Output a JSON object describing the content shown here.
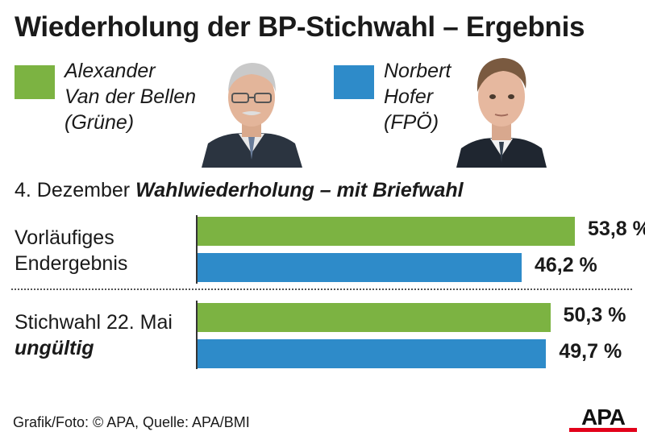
{
  "title": "Wiederholung der BP-Stichwahl – Ergebnis",
  "legend": [
    {
      "lines": [
        "Alexander",
        "Van der Bellen",
        "(Grüne)"
      ],
      "color": "#7cb342",
      "photo_icon": "portrait-van-der-bellen"
    },
    {
      "lines": [
        "Norbert",
        "Hofer",
        "(FPÖ)"
      ],
      "color": "#2e8bc9",
      "photo_icon": "portrait-hofer"
    }
  ],
  "subtitle": {
    "date": "4. Dezember",
    "emphasis": "Wahlwiederholung – mit Briefwahl"
  },
  "chart_data": {
    "type": "bar",
    "orientation": "horizontal",
    "unit": "%",
    "xlim": [
      0,
      100
    ],
    "groups": [
      {
        "label_lines": [
          "Vorläufiges",
          "Endergebnis"
        ],
        "values": [
          53.8,
          46.2
        ],
        "value_labels": [
          "53,8 %",
          "46,2 %"
        ]
      },
      {
        "label_lines": [
          "Stichwahl 22. Mai",
          "ungültig"
        ],
        "values": [
          50.3,
          49.7
        ],
        "value_labels": [
          "50,3 %",
          "49,7 %"
        ]
      }
    ],
    "series": [
      {
        "name": "Alexander Van der Bellen (Grüne)",
        "color": "#7cb342"
      },
      {
        "name": "Norbert Hofer (FPÖ)",
        "color": "#2e8bc9"
      }
    ]
  },
  "footer": "Grafik/Foto: © APA, Quelle: APA/BMI",
  "logo_text": "APA",
  "colors": {
    "green": "#7cb342",
    "blue": "#2e8bc9",
    "logo_red": "#e2001a"
  }
}
